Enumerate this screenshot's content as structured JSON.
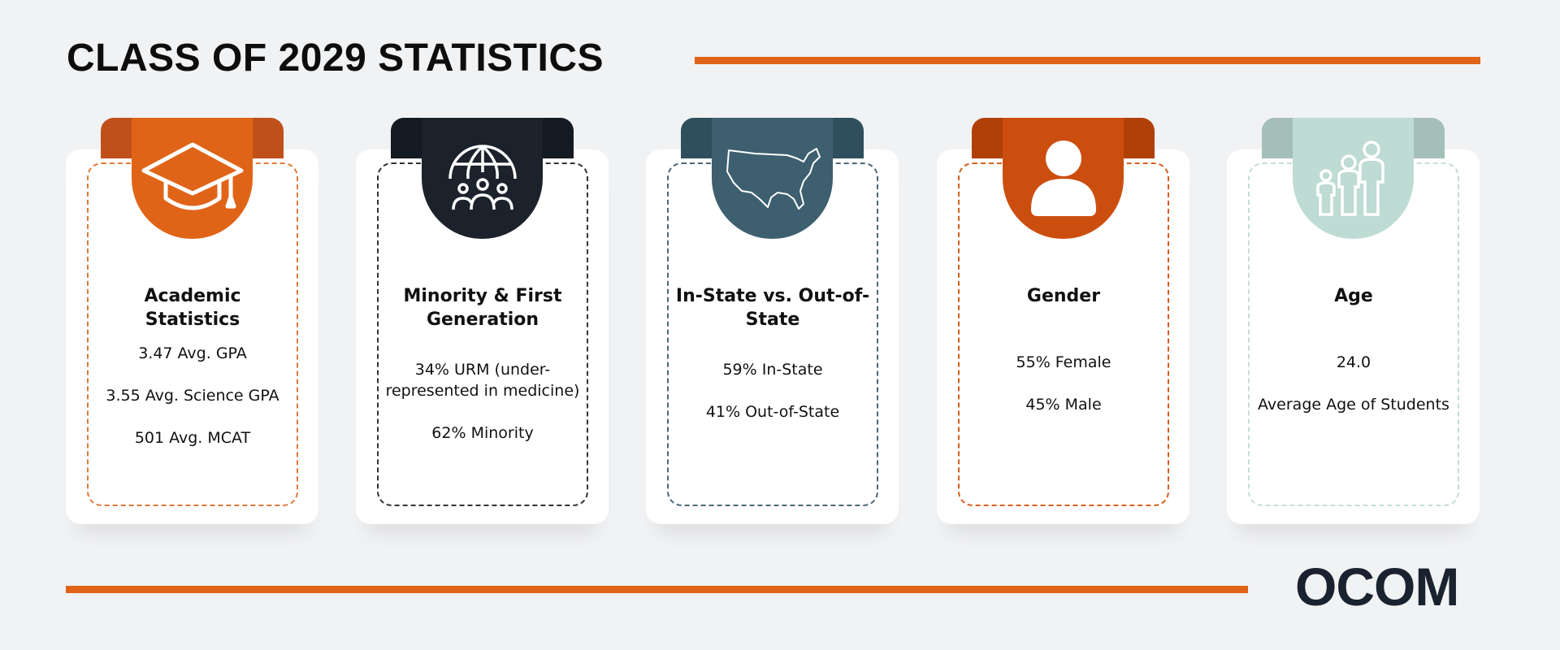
{
  "header": {
    "title": "CLASS OF 2029 STATISTICS"
  },
  "cards": [
    {
      "title": "Academic Statistics",
      "lines": [
        "3.47 Avg. GPA",
        "3.55 Avg. Science GPA",
        "501 Avg. MCAT"
      ]
    },
    {
      "title": "Minority & First Generation",
      "lines": [
        "34% URM (under-represented in medicine)",
        "62% Minority"
      ]
    },
    {
      "title": "In-State vs. Out-of-State",
      "lines": [
        "59% In-State",
        "41% Out-of-State"
      ]
    },
    {
      "title": "Gender",
      "lines": [
        "55% Female",
        "45% Male"
      ]
    },
    {
      "title": "Age",
      "lines": [
        "24.0",
        "Average Age of Students"
      ]
    }
  ],
  "footer": {
    "logo": "OCOM"
  }
}
